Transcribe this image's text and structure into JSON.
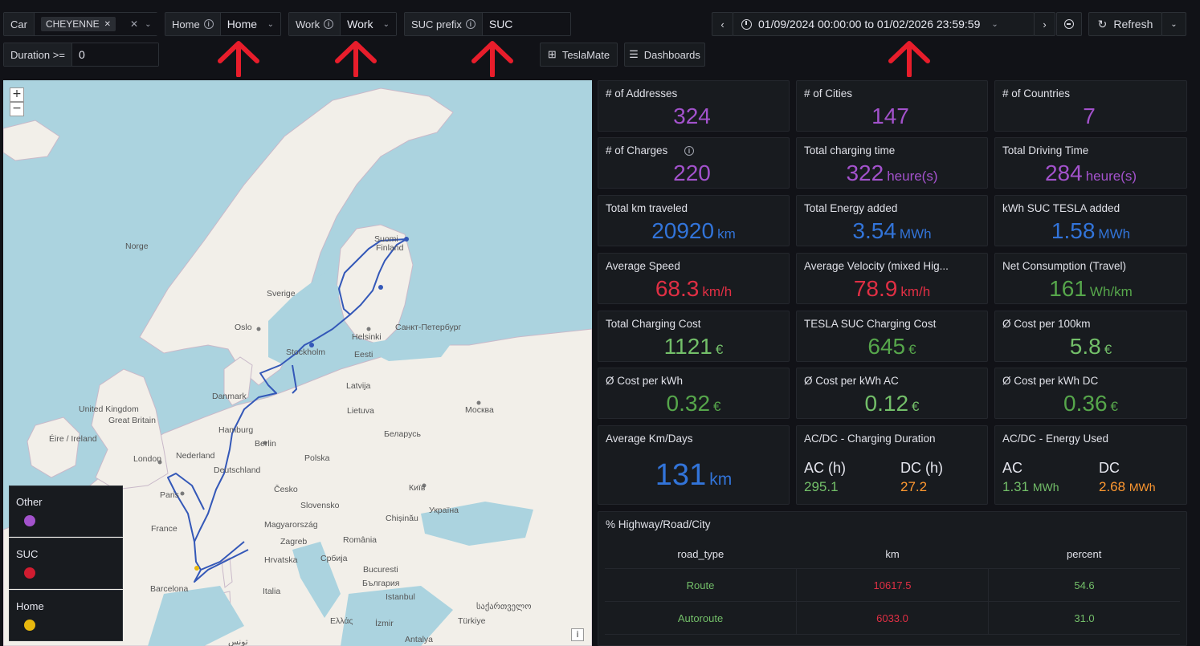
{
  "toolbar": {
    "car": {
      "label": "Car",
      "chip": "CHEYENNE",
      "clear": "✕"
    },
    "home": {
      "label": "Home",
      "value": "Home"
    },
    "work": {
      "label": "Work",
      "value": "Work"
    },
    "suc": {
      "label": "SUC prefix",
      "value": "SUC"
    },
    "duration": {
      "label": "Duration >=",
      "value": "0"
    },
    "time_range": "01/09/2024 00:00:00 to 01/02/2026 23:59:59",
    "refresh_label": "Refresh",
    "link_teslamate": "TeslaMate",
    "link_dashboards": "Dashboards"
  },
  "map": {
    "zoom_in": "+",
    "zoom_out": "−",
    "attribution": "i",
    "labels": [
      "Norge",
      "Sverige",
      "Suomi",
      "Finland",
      "Oslo",
      "Stockholm",
      "Helsinki",
      "Eesti",
      "Санкт-Петербург",
      "Latvija",
      "Lietuva",
      "Danmark",
      "Москва",
      "United Kingdom",
      "Great Britain",
      "Éire / Ireland",
      "Hamburg",
      "Berlin",
      "Nederland",
      "London",
      "Беларусь",
      "Deutschland",
      "Polska",
      "Paris",
      "Česko",
      "Київ",
      "Україна",
      "Slovensko",
      "France",
      "Magyarország",
      "Chișinău",
      "Zagreb",
      "România",
      "Hrvatska",
      "Србија",
      "Bucuresti",
      "България",
      "Barcelona",
      "Italia",
      "Istanbul",
      "საქართველო",
      "Türkiye",
      "Ελλάς",
      "İzmir",
      "Antalya",
      "تونس"
    ],
    "legend": [
      {
        "label": "Other",
        "color": "#a352cc"
      },
      {
        "label": "SUC",
        "color": "#d01c30"
      },
      {
        "label": "Home",
        "color": "#e8b80e"
      }
    ]
  },
  "stats": [
    {
      "title": "# of Addresses",
      "value": "324",
      "unit": "",
      "color": "purple"
    },
    {
      "title": "# of Cities",
      "value": "147",
      "unit": "",
      "color": "purple"
    },
    {
      "title": "# of Countries",
      "value": "7",
      "unit": "",
      "color": "purple"
    },
    {
      "title": "# of Charges",
      "value": "220",
      "unit": "",
      "color": "purple"
    },
    {
      "title": "Total charging time",
      "value": "322",
      "unit": "heure(s)",
      "color": "purple"
    },
    {
      "title": "Total Driving Time",
      "value": "284",
      "unit": "heure(s)",
      "color": "purple"
    },
    {
      "title": "Total km traveled",
      "value": "20920",
      "unit": "km",
      "color": "blue"
    },
    {
      "title": "Total Energy added",
      "value": "3.54",
      "unit": "MWh",
      "color": "blue"
    },
    {
      "title": "kWh SUC TESLA added",
      "value": "1.58",
      "unit": "MWh",
      "color": "blue"
    },
    {
      "title": "Average Speed",
      "value": "68.3",
      "unit": "km/h",
      "color": "red"
    },
    {
      "title": "Average Velocity (mixed Hig...",
      "value": "78.9",
      "unit": "km/h",
      "color": "red"
    },
    {
      "title": "Net Consumption (Travel)",
      "value": "161",
      "unit": "Wh/km",
      "color": "green"
    },
    {
      "title": "Total Charging Cost",
      "value": "1121",
      "unit": "€",
      "color": "lgreen"
    },
    {
      "title": "TESLA SUC Charging Cost",
      "value": "645",
      "unit": "€",
      "color": "green"
    },
    {
      "title": "Ø Cost per 100km",
      "value": "5.8",
      "unit": "€",
      "color": "lgreen"
    },
    {
      "title": "Ø Cost per kWh",
      "value": "0.32",
      "unit": "€",
      "color": "green"
    },
    {
      "title": "Ø Cost per kWh AC",
      "value": "0.12",
      "unit": "€",
      "color": "lgreen"
    },
    {
      "title": "Ø Cost per kWh DC",
      "value": "0.36",
      "unit": "€",
      "color": "green"
    }
  ],
  "avg_km_days": {
    "title": "Average Km/Days",
    "value": "131",
    "unit": "km"
  },
  "charging_duration": {
    "title": "AC/DC - Charging Duration",
    "ac_label": "AC (h)",
    "ac_value": "295.1",
    "dc_label": "DC (h)",
    "dc_value": "27.2"
  },
  "energy_used": {
    "title": "AC/DC - Energy Used",
    "ac_label": "AC",
    "ac_value": "1.31",
    "ac_unit": "MWh",
    "dc_label": "DC",
    "dc_value": "2.68",
    "dc_unit": "MWh"
  },
  "road_table": {
    "title": "% Highway/Road/City",
    "headers": [
      "road_type",
      "km",
      "percent"
    ],
    "rows": [
      [
        "Route",
        "10617.5",
        "54.6"
      ],
      [
        "Autoroute",
        "6033.0",
        "31.0"
      ]
    ]
  }
}
